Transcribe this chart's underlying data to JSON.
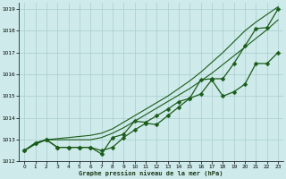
{
  "title": "Graphe pression niveau de la mer (hPa)",
  "background_color": "#ceeaea",
  "grid_color": "#aacece",
  "line_color": "#1a5c1a",
  "xlim": [
    -0.5,
    23.5
  ],
  "ylim": [
    1012,
    1019.3
  ],
  "yticks": [
    1012,
    1013,
    1014,
    1015,
    1016,
    1017,
    1018,
    1019
  ],
  "xticks": [
    0,
    1,
    2,
    3,
    4,
    5,
    6,
    7,
    8,
    9,
    10,
    11,
    12,
    13,
    14,
    15,
    16,
    17,
    18,
    19,
    20,
    21,
    22,
    23
  ],
  "series": [
    {
      "x": [
        0,
        1,
        2,
        3,
        4,
        5,
        6,
        7,
        8,
        9,
        10,
        11,
        12,
        13,
        14,
        15,
        16,
        17,
        18,
        19,
        20,
        21,
        22,
        23
      ],
      "y": [
        1012.5,
        1012.8,
        1013.0,
        1013.05,
        1013.1,
        1013.15,
        1013.2,
        1013.3,
        1013.5,
        1013.8,
        1014.1,
        1014.4,
        1014.7,
        1015.0,
        1015.35,
        1015.7,
        1016.1,
        1016.55,
        1017.0,
        1017.5,
        1018.0,
        1018.4,
        1018.75,
        1019.1
      ],
      "marker": null,
      "markersize": 0,
      "linewidth": 0.8
    },
    {
      "x": [
        0,
        1,
        2,
        3,
        4,
        5,
        6,
        7,
        8,
        9,
        10,
        11,
        12,
        13,
        14,
        15,
        16,
        17,
        18,
        19,
        20,
        21,
        22,
        23
      ],
      "y": [
        1012.5,
        1012.8,
        1013.0,
        1013.0,
        1013.0,
        1013.0,
        1013.0,
        1013.1,
        1013.3,
        1013.55,
        1013.85,
        1014.15,
        1014.45,
        1014.75,
        1015.05,
        1015.35,
        1015.7,
        1016.05,
        1016.45,
        1016.85,
        1017.25,
        1017.65,
        1018.05,
        1018.5
      ],
      "marker": null,
      "markersize": 0,
      "linewidth": 0.8
    },
    {
      "x": [
        0,
        1,
        2,
        3,
        4,
        5,
        6,
        7,
        8,
        9,
        10,
        11,
        12,
        13,
        14,
        15,
        16,
        17,
        18,
        19,
        20,
        21,
        22,
        23
      ],
      "y": [
        1012.5,
        1012.85,
        1013.0,
        1012.65,
        1012.65,
        1012.65,
        1012.65,
        1012.5,
        1012.65,
        1013.1,
        1013.45,
        1013.75,
        1013.7,
        1014.1,
        1014.5,
        1014.9,
        1015.75,
        1015.8,
        1015.8,
        1016.5,
        1017.3,
        1018.1,
        1018.15,
        1019.0
      ],
      "marker": "D",
      "markersize": 2.5,
      "linewidth": 0.9
    },
    {
      "x": [
        0,
        1,
        2,
        3,
        4,
        5,
        6,
        7,
        8,
        9,
        10,
        11,
        12,
        13,
        14,
        15,
        16,
        17,
        18,
        19,
        20,
        21,
        22,
        23
      ],
      "y": [
        1012.5,
        1012.85,
        1013.0,
        1012.65,
        1012.65,
        1012.65,
        1012.65,
        1012.35,
        1013.1,
        1013.25,
        1013.85,
        1013.8,
        1014.1,
        1014.4,
        1014.75,
        1014.9,
        1015.1,
        1015.75,
        1015.0,
        1015.2,
        1015.55,
        1016.5,
        1016.5,
        1017.0
      ],
      "marker": "D",
      "markersize": 2.5,
      "linewidth": 0.9
    }
  ]
}
